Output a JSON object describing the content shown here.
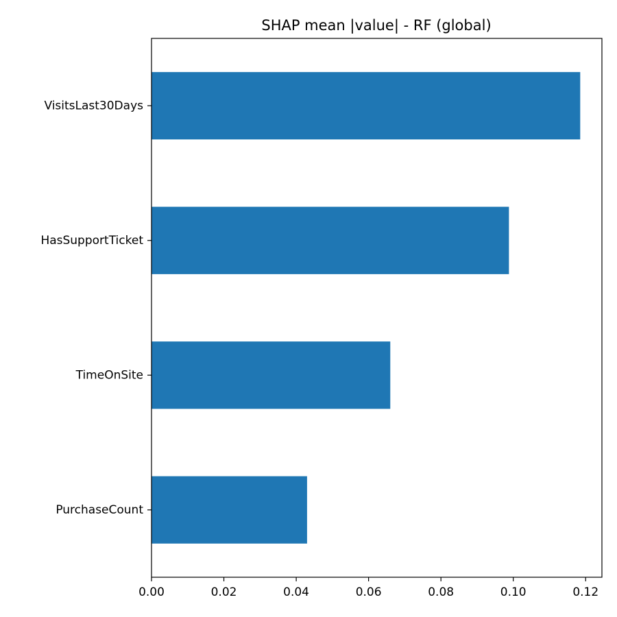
{
  "chart_data": {
    "type": "bar",
    "orientation": "horizontal",
    "title": "SHAP mean |value| - RF (global)",
    "xlabel": "",
    "ylabel": "",
    "categories": [
      "VisitsLast30Days",
      "HasSupportTicket",
      "TimeOnSite",
      "PurchaseCount"
    ],
    "values": [
      0.1185,
      0.0988,
      0.066,
      0.043
    ],
    "xlim": [
      0,
      0.1245
    ],
    "xticks": [
      0.0,
      0.02,
      0.04,
      0.06,
      0.08,
      0.1,
      0.12
    ],
    "xtick_labels": [
      "0.00",
      "0.02",
      "0.04",
      "0.06",
      "0.08",
      "0.10",
      "0.12"
    ],
    "grid": false,
    "legend": "none",
    "bar_color": "#1f77b4"
  }
}
